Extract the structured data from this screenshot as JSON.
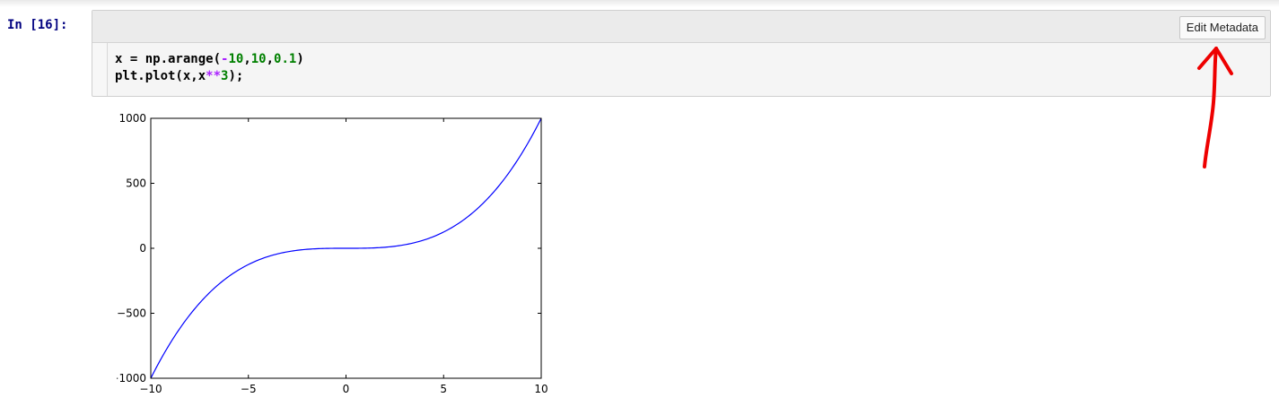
{
  "cell": {
    "prompt": "In [16]:",
    "toolbar": {
      "edit_metadata_label": "Edit Metadata"
    },
    "code": [
      [
        {
          "t": "x = np.arange(",
          "c": ""
        },
        {
          "t": "-",
          "c": "op"
        },
        {
          "t": "10",
          "c": "num"
        },
        {
          "t": ",",
          "c": ""
        },
        {
          "t": "10",
          "c": "num"
        },
        {
          "t": ",",
          "c": ""
        },
        {
          "t": "0.1",
          "c": "num"
        },
        {
          "t": ")",
          "c": ""
        }
      ],
      [
        {
          "t": "plt.plot(x,x",
          "c": ""
        },
        {
          "t": "**",
          "c": "op"
        },
        {
          "t": "3",
          "c": "num"
        },
        {
          "t": ");",
          "c": ""
        }
      ]
    ]
  },
  "colors": {
    "line": "#0000ff",
    "annotation": "#ee0000",
    "prompt": "#000080"
  },
  "chart_data": {
    "type": "line",
    "x_function": "x^3",
    "xlim": [
      -10,
      10
    ],
    "ylim": [
      -1000,
      1000
    ],
    "xticks": [
      -10,
      -5,
      0,
      5,
      10
    ],
    "yticks": [
      -1000,
      -500,
      0,
      500,
      1000
    ],
    "x_tick_labels": [
      "−10",
      "−5",
      "0",
      "5",
      "10"
    ],
    "y_tick_labels": [
      "−1000",
      "−500",
      "0",
      "500",
      "1000"
    ],
    "series": [
      {
        "color": "#0000ff",
        "x": [
          -10,
          -9,
          -8,
          -7,
          -6,
          -5,
          -4,
          -3,
          -2,
          -1,
          0,
          1,
          2,
          3,
          4,
          5,
          6,
          7,
          8,
          9,
          10
        ],
        "y": [
          -1000,
          -729,
          -512,
          -343,
          -216,
          -125,
          -64,
          -27,
          -8,
          -1,
          0,
          1,
          8,
          27,
          64,
          125,
          216,
          343,
          512,
          729,
          1000
        ]
      }
    ],
    "title": "",
    "xlabel": "",
    "ylabel": "",
    "grid": false
  }
}
